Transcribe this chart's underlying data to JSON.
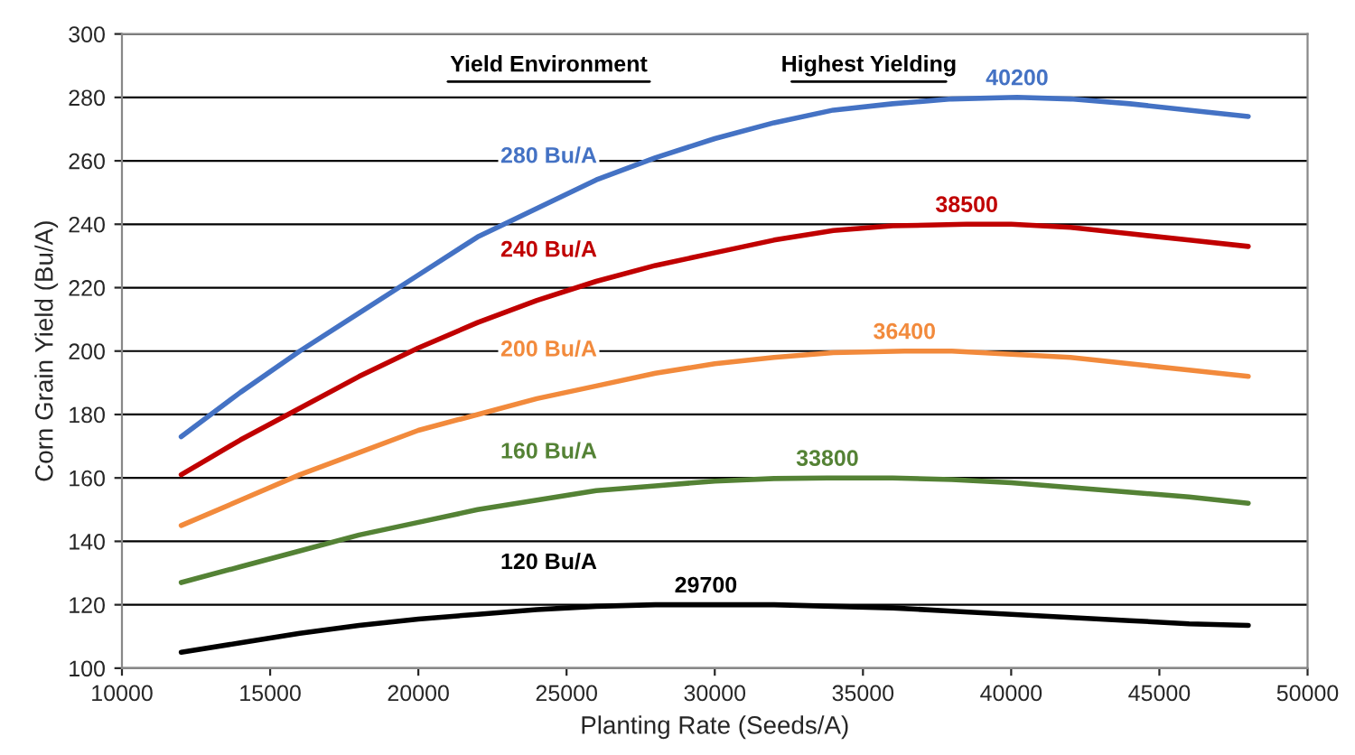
{
  "chart_data": {
    "type": "line",
    "xlabel": "Planting Rate (Seeds/A)",
    "ylabel": "Corn Grain Yield (Bu/A)",
    "xlim": [
      10000,
      50000
    ],
    "xticks": [
      10000,
      15000,
      20000,
      25000,
      30000,
      35000,
      40000,
      45000,
      50000
    ],
    "ylim": [
      100,
      300
    ],
    "yticks": [
      100,
      120,
      140,
      160,
      180,
      200,
      220,
      240,
      260,
      280,
      300
    ],
    "grid": "y",
    "legend": false,
    "marker": "none",
    "line_style": "solid",
    "series": [
      {
        "name": "280 Bu/A",
        "color": "#4472c4",
        "x": [
          12000,
          14000,
          16000,
          18000,
          20000,
          22000,
          24000,
          26000,
          28000,
          30000,
          32000,
          34000,
          36000,
          38000,
          40200,
          42000,
          44000,
          46000,
          48000
        ],
        "values": [
          173,
          187,
          200,
          212,
          224,
          236,
          245,
          254,
          261,
          267,
          272,
          276,
          278,
          279.5,
          280,
          279.5,
          278,
          276,
          274
        ]
      },
      {
        "name": "240 Bu/A",
        "color": "#c00000",
        "x": [
          12000,
          14000,
          16000,
          18000,
          20000,
          22000,
          24000,
          26000,
          28000,
          30000,
          32000,
          34000,
          36000,
          38500,
          40000,
          42000,
          44000,
          46000,
          48000
        ],
        "values": [
          161,
          172,
          182,
          192,
          201,
          209,
          216,
          222,
          227,
          231,
          235,
          238,
          239.5,
          240,
          240,
          239,
          237,
          235,
          233
        ]
      },
      {
        "name": "200 Bu/A",
        "color": "#f28a3c",
        "x": [
          12000,
          14000,
          16000,
          18000,
          20000,
          22000,
          24000,
          26000,
          28000,
          30000,
          32000,
          34000,
          36400,
          38000,
          40000,
          42000,
          44000,
          46000,
          48000
        ],
        "values": [
          145,
          153,
          161,
          168,
          175,
          180,
          185,
          189,
          193,
          196,
          198,
          199.5,
          200,
          200,
          199,
          198,
          196,
          194,
          192
        ]
      },
      {
        "name": "160 Bu/A",
        "color": "#548235",
        "x": [
          12000,
          14000,
          16000,
          18000,
          20000,
          22000,
          24000,
          26000,
          28000,
          30000,
          32000,
          33800,
          36000,
          38000,
          40000,
          42000,
          44000,
          46000,
          48000
        ],
        "values": [
          127,
          132,
          137,
          142,
          146,
          150,
          153,
          156,
          157.5,
          159,
          159.8,
          160,
          160,
          159.5,
          158.5,
          157,
          155.5,
          154,
          152
        ]
      },
      {
        "name": "120 Bu/A",
        "color": "#000000",
        "x": [
          12000,
          14000,
          16000,
          18000,
          20000,
          22000,
          24000,
          26000,
          28000,
          29700,
          32000,
          34000,
          36000,
          38000,
          40000,
          42000,
          44000,
          46000,
          48000
        ],
        "values": [
          105,
          108,
          111,
          113.5,
          115.5,
          117,
          118.5,
          119.5,
          120,
          120,
          120,
          119.5,
          119,
          118,
          117,
          116,
          115,
          114,
          113.5
        ]
      }
    ],
    "annotations": [
      "Yield Environment",
      "Highest Yielding",
      {
        "text": "40200",
        "x": 40200,
        "y": 280
      },
      {
        "text": "38500",
        "x": 38500,
        "y": 240
      },
      {
        "text": "36400",
        "x": 36400,
        "y": 200
      },
      {
        "text": "33800",
        "x": 33800,
        "y": 160
      },
      {
        "text": "29700",
        "x": 29700,
        "y": 120
      }
    ]
  }
}
